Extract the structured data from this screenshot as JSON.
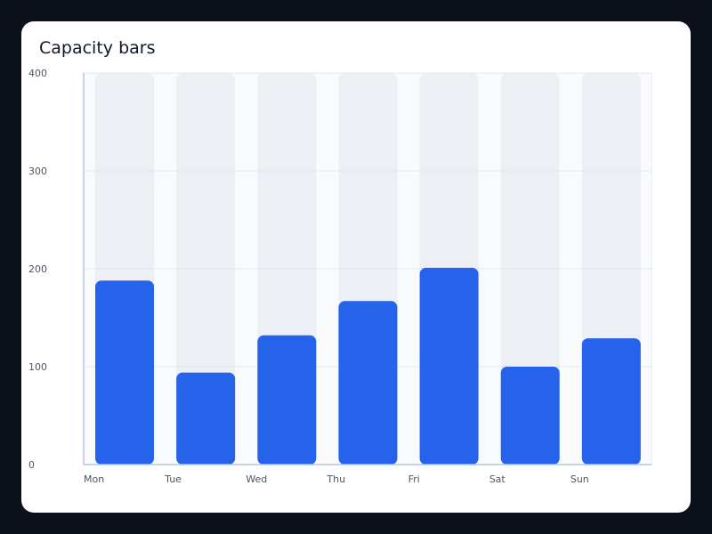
{
  "colors": {
    "background": "#0c111b",
    "card": "#ffffff",
    "plot_bg": "#f8fafc",
    "track": "#eceff3",
    "bar": "#2563eb",
    "grid": "#e5eaf1",
    "axis": "#b9c5dc"
  },
  "chart_data": {
    "type": "bar",
    "title": "Capacity bars",
    "xlabel": "",
    "ylabel": "",
    "categories": [
      "Mon",
      "Tue",
      "Wed",
      "Thu",
      "Fri",
      "Sat",
      "Sun"
    ],
    "values": [
      188,
      94,
      132,
      167,
      201,
      100,
      129
    ],
    "capacity": [
      400,
      400,
      400,
      400,
      400,
      400,
      400
    ],
    "ylim": [
      0,
      400
    ],
    "yticks": [
      0,
      100,
      200,
      300,
      400
    ],
    "grid": true,
    "legend": "none"
  }
}
